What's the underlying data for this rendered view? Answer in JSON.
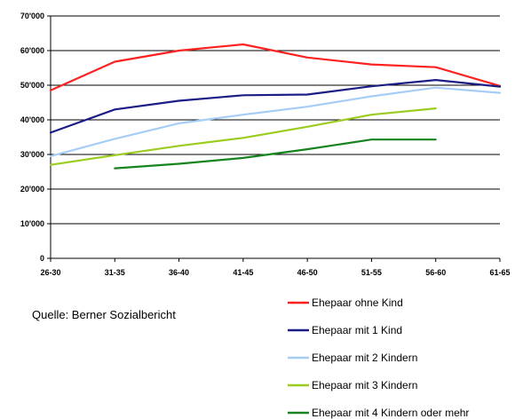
{
  "chart_data": {
    "type": "line",
    "categories": [
      "26-30",
      "31-35",
      "36-40",
      "41-45",
      "46-50",
      "51-55",
      "56-60",
      "61-65"
    ],
    "y_ticks": [
      "0",
      "10'000",
      "20'000",
      "30'000",
      "40'000",
      "50'000",
      "60'000",
      "70'000"
    ],
    "ylim": [
      0,
      70000
    ],
    "grid": true,
    "legend_position": "bottom-right",
    "series": [
      {
        "name": "Ehepaar ohne Kind",
        "color": "#ff2020",
        "values": [
          48500,
          56800,
          60000,
          61800,
          58000,
          56000,
          55200,
          49800
        ]
      },
      {
        "name": "Ehepaar mit 1 Kind",
        "color": "#1c1c86",
        "values": [
          36300,
          43000,
          45500,
          47100,
          47300,
          49700,
          51500,
          49600
        ]
      },
      {
        "name": "Ehepaar mit 2 Kindern",
        "color": "#a6cdf6",
        "values": [
          29500,
          34500,
          39000,
          41500,
          43800,
          46800,
          49300,
          47800
        ]
      },
      {
        "name": "Ehepaar mit 3 Kindern",
        "color": "#9ccc20",
        "values": [
          27000,
          29800,
          32500,
          34800,
          38000,
          41500,
          43300,
          null
        ]
      },
      {
        "name": "Ehepaar mit 4 Kindern oder mehr",
        "color": "#16841e",
        "values": [
          null,
          26000,
          27300,
          29000,
          31500,
          34300,
          34300,
          null
        ]
      }
    ]
  },
  "source_note": "Quelle: Berner Sozialbericht"
}
